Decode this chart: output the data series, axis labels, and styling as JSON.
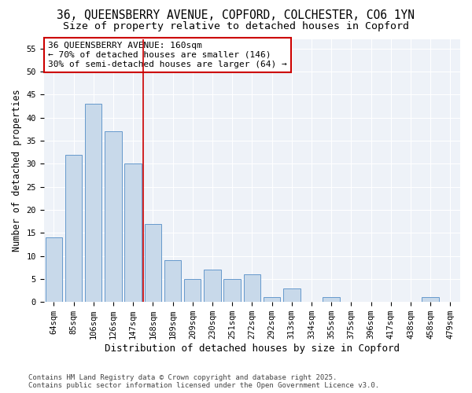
{
  "title_line1": "36, QUEENSBERRY AVENUE, COPFORD, COLCHESTER, CO6 1YN",
  "title_line2": "Size of property relative to detached houses in Copford",
  "xlabel": "Distribution of detached houses by size in Copford",
  "ylabel": "Number of detached properties",
  "categories": [
    "64sqm",
    "85sqm",
    "106sqm",
    "126sqm",
    "147sqm",
    "168sqm",
    "189sqm",
    "209sqm",
    "230sqm",
    "251sqm",
    "272sqm",
    "292sqm",
    "313sqm",
    "334sqm",
    "355sqm",
    "375sqm",
    "396sqm",
    "417sqm",
    "438sqm",
    "458sqm",
    "479sqm"
  ],
  "values": [
    14,
    32,
    43,
    37,
    30,
    17,
    9,
    5,
    7,
    5,
    6,
    1,
    3,
    0,
    1,
    0,
    0,
    0,
    0,
    1,
    0
  ],
  "bar_facecolor": "#c8d9ea",
  "bar_edgecolor": "#6699cc",
  "bar_linewidth": 0.7,
  "vline_x": 4.5,
  "vline_color": "#cc0000",
  "vline_linewidth": 1.2,
  "annotation_text": "36 QUEENSBERRY AVENUE: 160sqm\n← 70% of detached houses are smaller (146)\n30% of semi-detached houses are larger (64) →",
  "annotation_boxcolor": "white",
  "annotation_edgecolor": "#cc0000",
  "ylim": [
    0,
    57
  ],
  "yticks": [
    0,
    5,
    10,
    15,
    20,
    25,
    30,
    35,
    40,
    45,
    50,
    55
  ],
  "bg_color": "#ffffff",
  "plot_bg_color": "#eef2f8",
  "grid_color": "white",
  "footer_text": "Contains HM Land Registry data © Crown copyright and database right 2025.\nContains public sector information licensed under the Open Government Licence v3.0.",
  "title_fontsize": 10.5,
  "subtitle_fontsize": 9.5,
  "xlabel_fontsize": 9,
  "ylabel_fontsize": 8.5,
  "tick_fontsize": 7.5,
  "annotation_fontsize": 8,
  "footer_fontsize": 6.5
}
